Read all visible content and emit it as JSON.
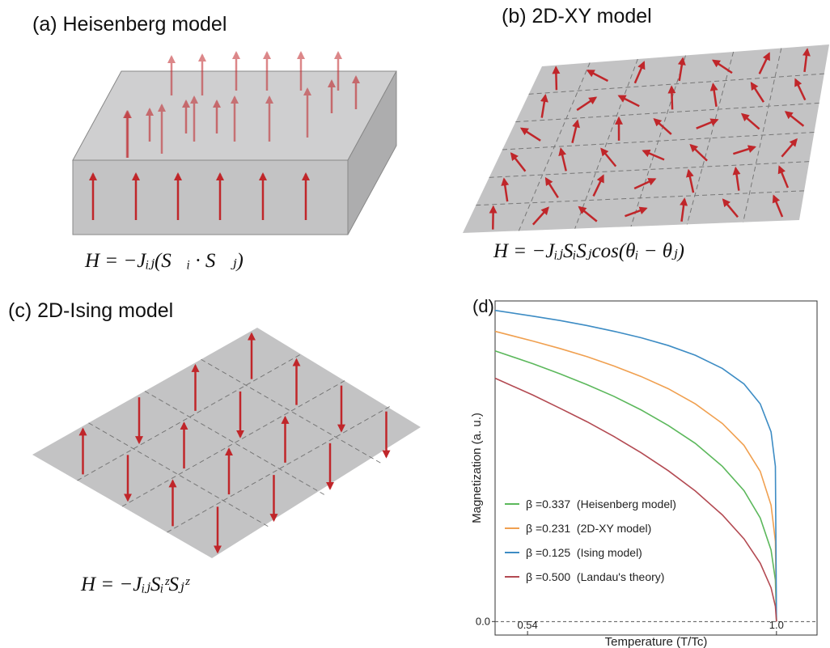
{
  "panels": [
    {
      "title": "(a) Heisenberg model",
      "formula": "H = −Jᵢⱼ(S⃗ᵢ · S⃗ⱼ)"
    },
    {
      "title": "(b) 2D-XY model",
      "formula": "H = −JᵢⱼSᵢSⱼcos(θᵢ − θⱼ)"
    },
    {
      "title": "(c) 2D-Ising model",
      "formula": "H = −JᵢⱼSᵢᶻSⱼᶻ"
    }
  ],
  "chart_data": {
    "type": "line",
    "panel_label": "(d)",
    "xlabel": "Temperature (T/Tc)",
    "ylabel": "Magnetization (a. u.)",
    "x": [
      0.48,
      0.55,
      0.6,
      0.65,
      0.7,
      0.75,
      0.8,
      0.85,
      0.9,
      0.94,
      0.97,
      0.99,
      0.998,
      1.0
    ],
    "series": [
      {
        "name": "β =0.337  (Heisenberg model)",
        "color": "#5cb85c",
        "values": [
          0.802,
          0.764,
          0.734,
          0.702,
          0.667,
          0.627,
          0.581,
          0.528,
          0.46,
          0.388,
          0.307,
          0.212,
          0.123,
          0
        ]
      },
      {
        "name": "β =0.231  (2D-XY model)",
        "color": "#f0a050",
        "values": [
          0.86,
          0.831,
          0.809,
          0.785,
          0.757,
          0.726,
          0.69,
          0.645,
          0.587,
          0.522,
          0.445,
          0.345,
          0.238,
          0
        ]
      },
      {
        "name": "β =0.125  (Ising model)",
        "color": "#3d8cc4",
        "values": [
          0.922,
          0.905,
          0.892,
          0.877,
          0.86,
          0.841,
          0.818,
          0.789,
          0.75,
          0.704,
          0.645,
          0.562,
          0.46,
          0
        ]
      },
      {
        "name": "β =0.500  (Landau's theory)",
        "color": "#b34a52",
        "values": [
          0.721,
          0.671,
          0.632,
          0.592,
          0.548,
          0.5,
          0.447,
          0.387,
          0.316,
          0.245,
          0.173,
          0.1,
          0.045,
          0
        ]
      }
    ],
    "xlim": [
      0.48,
      1.075
    ],
    "ylim": [
      -0.04,
      0.95
    ],
    "xticks": [
      0.54,
      {
        "value": 1,
        "label": "1.0"
      }
    ],
    "yticks": [
      {
        "value": 0,
        "label": "0.0"
      }
    ],
    "grid": true,
    "legend": "lower left"
  }
}
